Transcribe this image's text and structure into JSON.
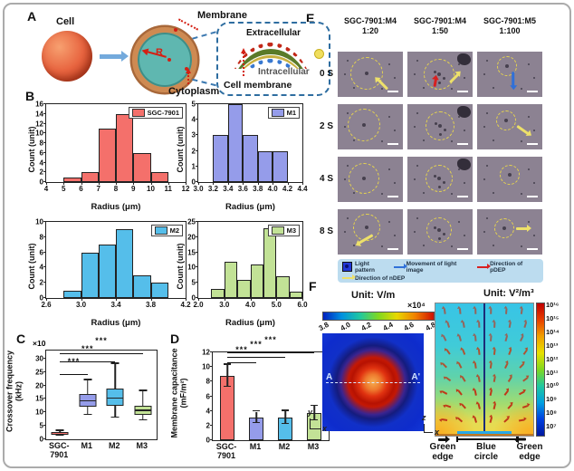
{
  "panel_labels": {
    "a": "A",
    "b": "B",
    "c": "C",
    "d": "D",
    "e": "E",
    "f": "F"
  },
  "colors": {
    "sgc": "#F4706B",
    "m1": "#959CEA",
    "m2": "#55BEEA",
    "m3": "#C2E296",
    "micro_bg": "#8C8292",
    "legend_bg": "#BCDCEF",
    "arrow_red": "#D82020",
    "arrow_blue": "#3070D8",
    "arrow_yellow": "#EDE06A"
  },
  "panel_a": {
    "cell_label": "Cell",
    "membrane_label": "Membrane",
    "cytoplasm_label": "Cytoplasm",
    "radius_label": "R",
    "extracellular_label": "Extracellular",
    "intracellular_label": "Intracellular",
    "cell_membrane_label": "Cell membrane"
  },
  "chart_data": [
    {
      "id": "hist_sgc",
      "type": "bar",
      "legend": "SGC-7901",
      "color": "#F4706B",
      "xlabel": "Radius (μm)",
      "ylabel": "Count (unit)",
      "xlim": [
        4,
        12
      ],
      "ylim": [
        0,
        16
      ],
      "xtick_labels": [
        "4",
        "5",
        "6",
        "7",
        "8",
        "9",
        "10",
        "11",
        "12"
      ],
      "xtick_values": [
        4,
        5,
        6,
        7,
        8,
        9,
        10,
        11,
        12
      ],
      "yticks": [
        0,
        2,
        4,
        6,
        8,
        10,
        12,
        14,
        16
      ],
      "bin_start": 5,
      "bin_width": 1,
      "values": [
        1,
        2,
        11,
        14,
        6,
        2
      ]
    },
    {
      "id": "hist_m1",
      "type": "bar",
      "legend": "M1",
      "color": "#959CEA",
      "xlabel": "Radius (μm)",
      "ylabel": "Count (unit)",
      "xlim": [
        3.0,
        4.4
      ],
      "ylim": [
        0,
        5
      ],
      "xtick_labels": [
        "3.0",
        "3.2",
        "3.4",
        "3.6",
        "3.8",
        "4.0",
        "4.2",
        "4.4"
      ],
      "xtick_values": [
        3.0,
        3.2,
        3.4,
        3.6,
        3.8,
        4.0,
        4.2,
        4.4
      ],
      "yticks": [
        0,
        1,
        2,
        3,
        4,
        5
      ],
      "bin_start": 3.2,
      "bin_width": 0.2,
      "values": [
        3,
        5,
        3,
        2,
        2
      ]
    },
    {
      "id": "hist_m2",
      "type": "bar",
      "legend": "M2",
      "color": "#55BEEA",
      "xlabel": "Radius (μm)",
      "ylabel": "Count (unit)",
      "xlim": [
        2.6,
        4.2
      ],
      "ylim": [
        0,
        10
      ],
      "xtick_labels": [
        "2.6",
        "3.0",
        "3.4",
        "3.8",
        "4.2"
      ],
      "xtick_values": [
        2.6,
        3.0,
        3.4,
        3.8,
        4.2
      ],
      "yticks": [
        0,
        2,
        4,
        6,
        8,
        10
      ],
      "bin_start": 2.8,
      "bin_width": 0.2,
      "values": [
        1,
        6,
        7,
        9,
        3,
        2
      ]
    },
    {
      "id": "hist_m3",
      "type": "bar",
      "legend": "M3",
      "color": "#C2E296",
      "xlabel": "Radius (μm)",
      "ylabel": "Count (unit)",
      "xlim": [
        2.0,
        6.0
      ],
      "ylim": [
        0,
        25
      ],
      "xtick_labels": [
        "2.0",
        "3.0",
        "4.0",
        "5.0",
        "6.0"
      ],
      "xtick_values": [
        2.0,
        3.0,
        4.0,
        5.0,
        6.0
      ],
      "yticks": [
        0,
        5,
        10,
        15,
        20,
        25
      ],
      "bin_start": 2.5,
      "bin_width": 0.5,
      "values": [
        3,
        12,
        6,
        11,
        23,
        7,
        2
      ]
    },
    {
      "id": "box_crossover",
      "type": "box",
      "ylabel_line1": "Crossover frequency",
      "ylabel_line2": "(kHz)",
      "scale_note": "×10",
      "ylim": [
        0,
        33
      ],
      "yticks": [
        0,
        5,
        10,
        15,
        20,
        25,
        30
      ],
      "categories": [
        "SGC-\n7901",
        "M1",
        "M2",
        "M3"
      ],
      "boxes": [
        {
          "name": "SGC-7901",
          "color": "#F4706B",
          "low": 1.4,
          "q1": 1.8,
          "median": 2.2,
          "q3": 2.7,
          "high": 3.2
        },
        {
          "name": "M1",
          "color": "#959CEA",
          "low": 9,
          "q1": 12,
          "median": 14,
          "q3": 17,
          "high": 22
        },
        {
          "name": "M2",
          "color": "#55BEEA",
          "low": 8,
          "q1": 12.5,
          "median": 15,
          "q3": 19,
          "high": 28
        },
        {
          "name": "M3",
          "color": "#C2E296",
          "low": 7,
          "q1": 9,
          "median": 10.5,
          "q3": 12.5,
          "high": 18
        }
      ],
      "significance": [
        {
          "from": 0,
          "to": 1,
          "y": 24,
          "label": "***"
        },
        {
          "from": 0,
          "to": 2,
          "y": 28.5,
          "label": "***"
        },
        {
          "from": 0,
          "to": 3,
          "y": 31.5,
          "label": "***"
        }
      ]
    },
    {
      "id": "bar_capacitance",
      "type": "bar-error",
      "ylabel_line1": "Membrane capacitance",
      "ylabel_line2": "(mF/m²)",
      "ylim": [
        0,
        12
      ],
      "yticks": [
        0,
        2,
        4,
        6,
        8,
        10,
        12
      ],
      "categories": [
        "SGC-\n7901",
        "M1",
        "M2",
        "M3"
      ],
      "values": [
        8.8,
        3.1,
        3.1,
        3.7
      ],
      "errors": [
        1.5,
        0.8,
        0.9,
        1.0
      ],
      "colors": [
        "#F4706B",
        "#959CEA",
        "#55BEEA",
        "#C2E296"
      ],
      "significance": [
        {
          "from": 0,
          "to": 1,
          "y": 10.5,
          "label": "***"
        },
        {
          "from": 0,
          "to": 2,
          "y": 11.2,
          "label": "***"
        },
        {
          "from": 0,
          "to": 3,
          "y": 11.9,
          "label": "***"
        }
      ]
    }
  ],
  "panel_e": {
    "columns": [
      {
        "line1": "SGC-7901:M4",
        "line2": "1:20"
      },
      {
        "line1": "SGC-7901:M4",
        "line2": "1:50"
      },
      {
        "line1": "SGC-7901:M5",
        "line2": "1:100"
      }
    ],
    "rows": [
      "0 S",
      "2 S",
      "4 S",
      "8 S"
    ],
    "cells": [
      {
        "circle": [
          44,
          48,
          17
        ],
        "arrows": [
          [
            "yellow",
            58,
            70,
            -135,
            15
          ]
        ]
      },
      {
        "circle": [
          48,
          50,
          16
        ],
        "arrows": [
          [
            "red",
            36,
            66,
            -80,
            9
          ],
          [
            "yellow",
            62,
            56,
            -45,
            13
          ]
        ],
        "blob": true,
        "indots": true
      },
      {
        "circle": [
          46,
          32,
          10
        ],
        "arrows": [
          [
            "blue",
            44,
            58,
            90,
            16
          ]
        ]
      },
      {
        "circle": [
          40,
          46,
          17
        ],
        "arrows": []
      },
      {
        "circle": [
          50,
          48,
          15
        ],
        "arrows": [],
        "blob": true,
        "indots": true
      },
      {
        "circle": [
          44,
          36,
          10
        ],
        "arrows": [
          [
            "yellow",
            60,
            54,
            35,
            15
          ]
        ]
      },
      {
        "circle": [
          40,
          48,
          16
        ],
        "arrows": []
      },
      {
        "circle": [
          48,
          48,
          14
        ],
        "arrows": [],
        "blob": true,
        "indots": true
      },
      {
        "circle": [
          50,
          40,
          10
        ],
        "arrows": []
      },
      {
        "circle": [
          44,
          40,
          14
        ],
        "arrows": [
          [
            "yellow",
            30,
            64,
            150,
            18
          ]
        ]
      },
      {
        "circle": [
          48,
          46,
          13
        ],
        "arrows": [],
        "indots": true
      },
      {
        "circle": [
          42,
          42,
          10
        ],
        "arrows": [
          [
            "yellow",
            60,
            40,
            0,
            13
          ]
        ]
      }
    ],
    "legend": [
      {
        "icon": "light-pattern",
        "label": "Light pattern"
      },
      {
        "icon": "blue-arrow",
        "label": "Movement of light image"
      },
      {
        "icon": "red-arrow",
        "label": "Direction of pDEP"
      },
      {
        "icon": "yellow-arrow",
        "label": "Direction of nDEP"
      }
    ]
  },
  "panel_f": {
    "left_unit": "Unit:  V/m",
    "left_scale": "×10⁴",
    "left_cbar_ticks": [
      "3.8",
      "4.0",
      "4.2",
      "4.4",
      "4.6",
      "4.8"
    ],
    "section_a": "A",
    "section_a_prime": "A'",
    "left_axis_v": "y",
    "left_axis_h": "x",
    "right_unit": "Unit:  V²/m³",
    "right_cbar_ticks": [
      "10¹⁶",
      "10¹⁵",
      "10¹⁴",
      "10¹³",
      "10¹²",
      "10¹¹",
      "10¹⁰",
      "10⁹",
      "10⁸",
      "10⁷"
    ],
    "right_axis_v": "z",
    "right_axis_h": "x",
    "bottom_labels": [
      "Green\nedge",
      "Blue\ncircle",
      "Green\nedge"
    ]
  }
}
